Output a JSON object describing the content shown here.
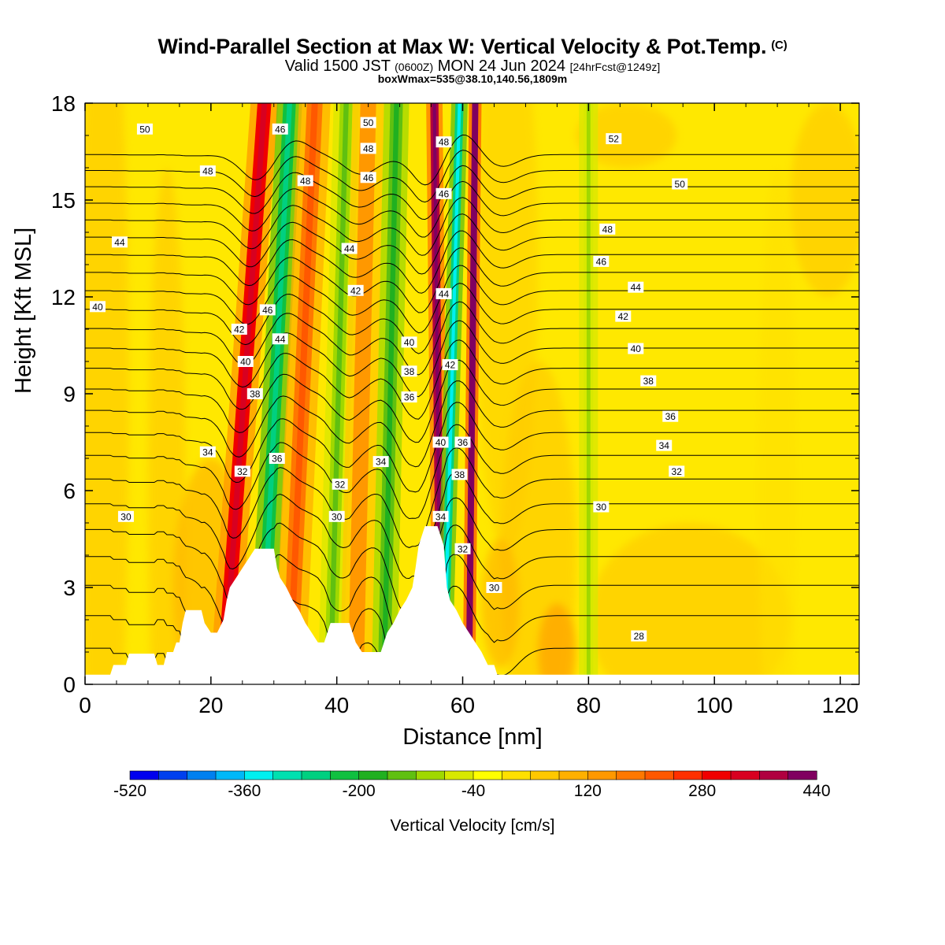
{
  "title": {
    "main": "Wind-Parallel Section at Max W: Vertical Velocity & Pot.Temp.",
    "copyright": "(C)",
    "valid_prefix": "Valid 1500 JST",
    "valid_utc": "(0600Z)",
    "valid_date": "MON 24 Jun 2024",
    "forecast": "[24hrFcst@1249z]",
    "boxline": "boxWmax=535@38.10,140.56,1809m"
  },
  "chart_data": {
    "type": "heatmap",
    "xlabel": "Distance [nm]",
    "ylabel": "Height [Kft MSL]",
    "xlim": [
      0,
      123
    ],
    "ylim": [
      0,
      18
    ],
    "xticks": [
      0,
      20,
      40,
      60,
      80,
      100,
      120
    ],
    "yticks": [
      0,
      3,
      6,
      9,
      12,
      15,
      18
    ],
    "grid": false,
    "colorbar": {
      "label": "Vertical Velocity [cm/s]",
      "min": -520,
      "max": 440,
      "step": 40,
      "tick_labels": [
        "-520",
        "-360",
        "-200",
        "-40",
        "120",
        "280",
        "440"
      ],
      "colors": [
        "#0000ee",
        "#0040ee",
        "#0080f0",
        "#00b8f8",
        "#00f0f0",
        "#00e0b0",
        "#00d080",
        "#10c040",
        "#20b020",
        "#60c010",
        "#a0d800",
        "#d8e800",
        "#ffff00",
        "#ffe000",
        "#ffc800",
        "#ffb000",
        "#ff9800",
        "#ff7800",
        "#ff5800",
        "#ff3000",
        "#f00000",
        "#d80020",
        "#b00040",
        "#800060"
      ]
    },
    "terrain_kft": [
      [
        0,
        0.3
      ],
      [
        4,
        0.3
      ],
      [
        4.5,
        0.6
      ],
      [
        6.5,
        0.6
      ],
      [
        7,
        0.95
      ],
      [
        11,
        0.95
      ],
      [
        11.5,
        0.6
      ],
      [
        12.5,
        0.6
      ],
      [
        13,
        1.0
      ],
      [
        14,
        1.0
      ],
      [
        14.5,
        1.3
      ],
      [
        15,
        1.3
      ],
      [
        15.5,
        1.9
      ],
      [
        16,
        2.3
      ],
      [
        18.5,
        2.3
      ],
      [
        19,
        1.9
      ],
      [
        20,
        1.6
      ],
      [
        21,
        1.6
      ],
      [
        22,
        2.0
      ],
      [
        22.5,
        2.6
      ],
      [
        23,
        3.0
      ],
      [
        24,
        3.3
      ],
      [
        25,
        3.6
      ],
      [
        26,
        3.9
      ],
      [
        27,
        4.2
      ],
      [
        30,
        4.2
      ],
      [
        30.5,
        3.6
      ],
      [
        31,
        3.3
      ],
      [
        32,
        3.0
      ],
      [
        33,
        2.6
      ],
      [
        34,
        2.3
      ],
      [
        35,
        1.9
      ],
      [
        36,
        1.6
      ],
      [
        37,
        1.3
      ],
      [
        38,
        1.3
      ],
      [
        38.5,
        1.6
      ],
      [
        39,
        1.9
      ],
      [
        42,
        1.9
      ],
      [
        42.5,
        1.6
      ],
      [
        43,
        1.3
      ],
      [
        44,
        1.0
      ],
      [
        47,
        1.0
      ],
      [
        47.5,
        1.3
      ],
      [
        48,
        1.6
      ],
      [
        49,
        1.9
      ],
      [
        50,
        2.3
      ],
      [
        51,
        2.6
      ],
      [
        52,
        3.0
      ],
      [
        52.5,
        3.6
      ],
      [
        53,
        4.3
      ],
      [
        54,
        4.9
      ],
      [
        56,
        4.9
      ],
      [
        57,
        4.3
      ],
      [
        57.5,
        3.0
      ],
      [
        58,
        2.6
      ],
      [
        59,
        2.3
      ],
      [
        60,
        1.9
      ],
      [
        61,
        1.6
      ],
      [
        62,
        1.3
      ],
      [
        63,
        1.0
      ],
      [
        64,
        0.6
      ],
      [
        65,
        0.6
      ],
      [
        65.5,
        0.3
      ],
      [
        123,
        0.3
      ]
    ],
    "w_bands": [
      {
        "x_start": 28.5,
        "x_end": 22.0,
        "width": 2.2,
        "w": 280
      },
      {
        "x_start": 32.5,
        "x_end": 28.0,
        "width": 2.0,
        "w": -220
      },
      {
        "x_start": 36.5,
        "x_end": 32.5,
        "width": 2.5,
        "w": 160
      },
      {
        "x_start": 41.5,
        "x_end": 39.0,
        "width": 2.0,
        "w": -120
      },
      {
        "x_start": 45.0,
        "x_end": 43.0,
        "width": 2.5,
        "w": 120
      },
      {
        "x_start": 49.5,
        "x_end": 47.5,
        "width": 2.0,
        "w": -160
      },
      {
        "x_start": 55.5,
        "x_end": 56.5,
        "width": 1.3,
        "w": 360
      },
      {
        "x_start": 59.5,
        "x_end": 57.0,
        "width": 1.3,
        "w": -260
      },
      {
        "x_start": 62.0,
        "x_end": 61.0,
        "width": 1.0,
        "w": 400
      },
      {
        "x_start": 80.0,
        "x_end": 80.0,
        "width": 1.5,
        "w": -80
      }
    ],
    "theta_contours": [
      28,
      30,
      32,
      34,
      36,
      38,
      40,
      42,
      44,
      46,
      48,
      50,
      52
    ],
    "contour_labels": [
      {
        "text": "50",
        "x": 9.5,
        "y": 17.2
      },
      {
        "text": "48",
        "x": 19.5,
        "y": 15.9
      },
      {
        "text": "44",
        "x": 5.5,
        "y": 13.7
      },
      {
        "text": "40",
        "x": 2.0,
        "y": 11.7
      },
      {
        "text": "42",
        "x": 24.5,
        "y": 11.0
      },
      {
        "text": "40",
        "x": 25.5,
        "y": 10.0
      },
      {
        "text": "38",
        "x": 27.0,
        "y": 9.0
      },
      {
        "text": "34",
        "x": 19.5,
        "y": 7.2
      },
      {
        "text": "32",
        "x": 25.0,
        "y": 6.6
      },
      {
        "text": "30",
        "x": 6.5,
        "y": 5.2
      },
      {
        "text": "46",
        "x": 31.0,
        "y": 17.2
      },
      {
        "text": "48",
        "x": 35.0,
        "y": 15.6
      },
      {
        "text": "46",
        "x": 29.0,
        "y": 11.6
      },
      {
        "text": "44",
        "x": 31.0,
        "y": 10.7
      },
      {
        "text": "36",
        "x": 30.5,
        "y": 7.0
      },
      {
        "text": "50",
        "x": 45.0,
        "y": 17.4
      },
      {
        "text": "48",
        "x": 45.0,
        "y": 16.6
      },
      {
        "text": "46",
        "x": 45.0,
        "y": 15.7
      },
      {
        "text": "44",
        "x": 42.0,
        "y": 13.5
      },
      {
        "text": "42",
        "x": 43.0,
        "y": 12.2
      },
      {
        "text": "34",
        "x": 47.0,
        "y": 6.9
      },
      {
        "text": "32",
        "x": 40.5,
        "y": 6.2
      },
      {
        "text": "30",
        "x": 40.0,
        "y": 5.2
      },
      {
        "text": "40",
        "x": 51.5,
        "y": 10.6
      },
      {
        "text": "38",
        "x": 51.5,
        "y": 9.7
      },
      {
        "text": "36",
        "x": 51.5,
        "y": 8.9
      },
      {
        "text": "48",
        "x": 57.0,
        "y": 16.8
      },
      {
        "text": "46",
        "x": 57.0,
        "y": 15.2
      },
      {
        "text": "44",
        "x": 57.0,
        "y": 12.1
      },
      {
        "text": "42",
        "x": 58.0,
        "y": 9.9
      },
      {
        "text": "40",
        "x": 56.5,
        "y": 7.5
      },
      {
        "text": "36",
        "x": 60.0,
        "y": 7.5
      },
      {
        "text": "38",
        "x": 59.5,
        "y": 6.5
      },
      {
        "text": "34",
        "x": 56.5,
        "y": 5.2
      },
      {
        "text": "32",
        "x": 60.0,
        "y": 4.2
      },
      {
        "text": "30",
        "x": 65.0,
        "y": 3.0
      },
      {
        "text": "52",
        "x": 84.0,
        "y": 16.9
      },
      {
        "text": "50",
        "x": 94.5,
        "y": 15.5
      },
      {
        "text": "48",
        "x": 83.0,
        "y": 14.1
      },
      {
        "text": "46",
        "x": 82.0,
        "y": 13.1
      },
      {
        "text": "44",
        "x": 87.5,
        "y": 12.3
      },
      {
        "text": "42",
        "x": 85.5,
        "y": 11.4
      },
      {
        "text": "40",
        "x": 87.5,
        "y": 10.4
      },
      {
        "text": "38",
        "x": 89.5,
        "y": 9.4
      },
      {
        "text": "36",
        "x": 93.0,
        "y": 8.3
      },
      {
        "text": "34",
        "x": 92.0,
        "y": 7.4
      },
      {
        "text": "32",
        "x": 94.0,
        "y": 6.6
      },
      {
        "text": "30",
        "x": 82.0,
        "y": 5.5
      },
      {
        "text": "28",
        "x": 88.0,
        "y": 1.5
      }
    ]
  }
}
